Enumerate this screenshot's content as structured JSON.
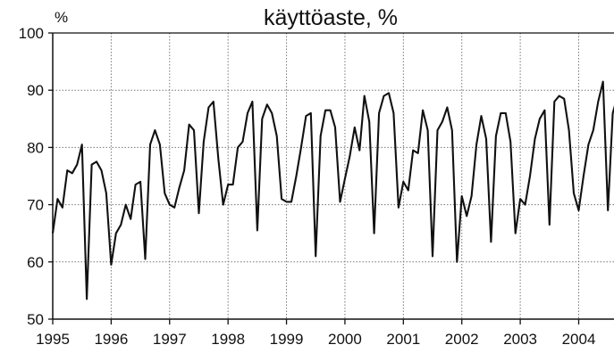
{
  "chart_data": {
    "type": "line",
    "title": "käyttöaste, %",
    "ylabel": "%",
    "xlabel": "",
    "ylim": [
      50,
      100
    ],
    "yticks": [
      50,
      60,
      70,
      80,
      90,
      100
    ],
    "xlim": [
      1995,
      2004.65
    ],
    "xticks": [
      "1995",
      "1996",
      "1997",
      "1998",
      "1999",
      "2000",
      "2001",
      "2002",
      "2003",
      "2004"
    ],
    "grid": true,
    "series": [
      {
        "values": [
          65,
          71,
          69.5,
          76,
          75.5,
          77,
          80.5,
          53.5,
          77,
          77.5,
          76,
          72,
          59.5,
          65,
          66.5,
          70,
          67.5,
          73.5,
          74,
          60.5,
          80.5,
          83,
          80.5,
          72,
          70,
          69.5,
          73,
          76,
          84,
          83,
          68.5,
          81,
          87,
          88,
          78,
          70,
          73.5,
          73.5,
          80,
          81,
          86,
          88,
          65.5,
          85,
          87.5,
          86,
          82,
          71,
          70.5,
          70.5,
          75,
          80,
          85.5,
          86,
          61,
          82,
          86.5,
          86.5,
          83.5,
          70.5,
          74.5,
          78.5,
          83.5,
          79.5,
          89,
          84.5,
          65,
          86,
          89,
          89.5,
          86,
          69.5,
          74,
          72.5,
          79.5,
          79,
          86.5,
          83,
          61,
          83,
          84.5,
          87,
          83,
          60,
          71.5,
          68,
          71.5,
          80.5,
          85.5,
          81.5,
          63.5,
          82,
          86,
          86,
          81,
          65,
          71,
          70,
          75,
          81.5,
          85,
          86.5,
          66.5,
          88,
          89,
          88.5,
          83,
          72,
          69,
          75,
          80.5,
          83,
          88,
          91.5,
          69,
          86,
          89
        ]
      }
    ]
  }
}
